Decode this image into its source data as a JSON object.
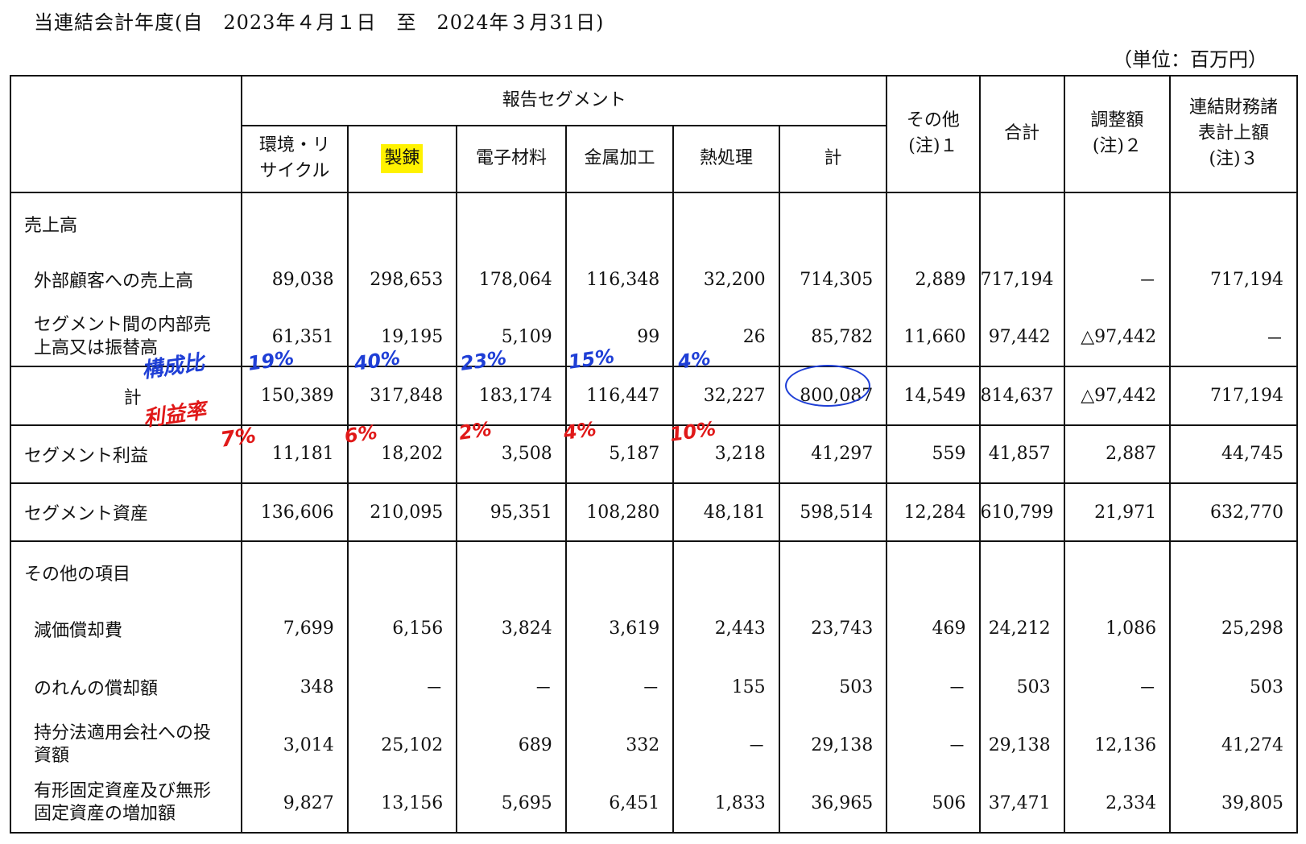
{
  "period_title": "当連結会計年度(自　2023年４月１日　至　2024年３月31日)",
  "unit_label": "（単位：百万円）",
  "headers": {
    "reported_segments": "報告セグメント",
    "segments": [
      "環境・リサイクル",
      "製錬",
      "電子材料",
      "金属加工",
      "熱処理",
      "計"
    ],
    "other": "その他\n(注)１",
    "total": "合計",
    "adjustment": "調整額\n(注)２",
    "consolidated": "連結財務諸表計上額\n(注)３"
  },
  "rows": {
    "sales_group": "売上高",
    "external_sales": {
      "label": "外部顧客への売上高",
      "values": [
        "89,038",
        "298,653",
        "178,064",
        "116,348",
        "32,200",
        "714,305",
        "2,889",
        "717,194",
        "－",
        "717,194"
      ]
    },
    "intersegment_sales": {
      "label": "セグメント間の内部売上高又は振替高",
      "values": [
        "61,351",
        "19,195",
        "5,109",
        "99",
        "26",
        "85,782",
        "11,660",
        "97,442",
        "△97,442",
        "－"
      ]
    },
    "sales_total": {
      "label": "計",
      "values": [
        "150,389",
        "317,848",
        "183,174",
        "116,447",
        "32,227",
        "800,087",
        "14,549",
        "814,637",
        "△97,442",
        "717,194"
      ]
    },
    "segment_profit": {
      "label": "セグメント利益",
      "values": [
        "11,181",
        "18,202",
        "3,508",
        "5,187",
        "3,218",
        "41,297",
        "559",
        "41,857",
        "2,887",
        "44,745"
      ]
    },
    "segment_assets": {
      "label": "セグメント資産",
      "values": [
        "136,606",
        "210,095",
        "95,351",
        "108,280",
        "48,181",
        "598,514",
        "12,284",
        "610,799",
        "21,971",
        "632,770"
      ]
    },
    "other_items_group": "その他の項目",
    "depreciation": {
      "label": "減価償却費",
      "values": [
        "7,699",
        "6,156",
        "3,824",
        "3,619",
        "2,443",
        "23,743",
        "469",
        "24,212",
        "1,086",
        "25,298"
      ]
    },
    "goodwill_amortization": {
      "label": "のれんの償却額",
      "values": [
        "348",
        "－",
        "－",
        "－",
        "155",
        "503",
        "－",
        "503",
        "－",
        "503"
      ]
    },
    "equity_investment": {
      "label": "持分法適用会社への投資額",
      "values": [
        "3,014",
        "25,102",
        "689",
        "332",
        "－",
        "29,138",
        "－",
        "29,138",
        "12,136",
        "41,274"
      ]
    },
    "capex_increase": {
      "label": "有形固定資産及び無形固定資産の増加額",
      "values": [
        "9,827",
        "13,156",
        "5,695",
        "6,451",
        "1,833",
        "36,965",
        "506",
        "37,471",
        "2,334",
        "39,805"
      ]
    }
  },
  "annotations": {
    "composition_label": "構成比",
    "composition_values": [
      "19%",
      "40%",
      "23%",
      "15%",
      "4%"
    ],
    "margin_label": "利益率",
    "margin_values": [
      "7%",
      "6%",
      "2%",
      "4%",
      "10%"
    ],
    "blue_color": "#1f3fd6",
    "red_color": "#e01919",
    "highlight_color": "#fff200"
  }
}
